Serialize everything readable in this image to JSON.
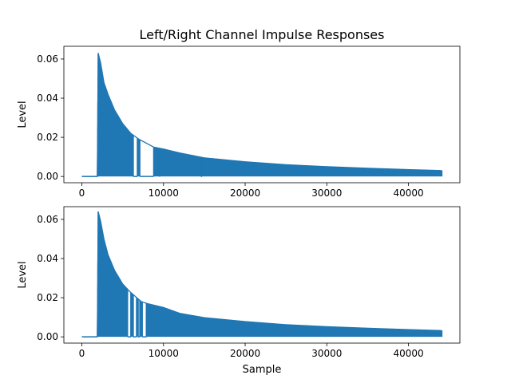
{
  "title": "Left/Right Channel Impulse Responses",
  "series_color": "#1f77b4",
  "chart_data": [
    {
      "type": "line",
      "panel": "top",
      "title": "Left/Right Channel Impulse Responses",
      "xlabel": "",
      "ylabel": "Level",
      "xlim": [
        -2200,
        46300
      ],
      "ylim": [
        -0.0032,
        0.0665
      ],
      "xticks": [
        0,
        10000,
        20000,
        30000,
        40000
      ],
      "xtick_labels": [
        "0",
        "10000",
        "20000",
        "30000",
        "40000"
      ],
      "yticks": [
        0.0,
        0.02,
        0.04,
        0.06
      ],
      "ytick_labels": [
        "0.00",
        "0.02",
        "0.04",
        "0.06"
      ],
      "grid": false,
      "series": [
        {
          "color": "#1f77b4",
          "x": [
            0,
            1900,
            2000,
            2300,
            2700,
            3200,
            4000,
            5000,
            6000,
            7000,
            8800,
            10000,
            12000,
            15000,
            20000,
            25000,
            30000,
            35000,
            40000,
            44100
          ],
          "y": [
            0.0,
            0.0,
            0.063,
            0.058,
            0.048,
            0.042,
            0.034,
            0.027,
            0.022,
            0.019,
            0.015,
            0.014,
            0.012,
            0.0095,
            0.0075,
            0.006,
            0.005,
            0.0042,
            0.0035,
            0.003
          ]
        }
      ],
      "gaps": [
        {
          "x": [
            6300,
            6800
          ]
        },
        {
          "x": [
            7100,
            8800
          ]
        },
        {
          "x": [
            9500,
            9550
          ]
        },
        {
          "x": [
            14600,
            14700
          ]
        }
      ]
    },
    {
      "type": "line",
      "panel": "bottom",
      "xlabel": "Sample",
      "ylabel": "Level",
      "xlim": [
        -2200,
        46300
      ],
      "ylim": [
        -0.0032,
        0.0665
      ],
      "xticks": [
        0,
        10000,
        20000,
        30000,
        40000
      ],
      "xtick_labels": [
        "0",
        "10000",
        "20000",
        "30000",
        "40000"
      ],
      "yticks": [
        0.0,
        0.02,
        0.04,
        0.06
      ],
      "ytick_labels": [
        "0.00",
        "0.02",
        "0.04",
        "0.06"
      ],
      "grid": false,
      "series": [
        {
          "color": "#1f77b4",
          "x": [
            0,
            1900,
            2000,
            2300,
            2700,
            3200,
            4000,
            5000,
            5900,
            7000,
            7300,
            8000,
            10000,
            12000,
            15000,
            20000,
            25000,
            30000,
            35000,
            40000,
            44100
          ],
          "y": [
            0.0,
            0.0,
            0.064,
            0.059,
            0.05,
            0.042,
            0.034,
            0.027,
            0.023,
            0.019,
            0.018,
            0.017,
            0.015,
            0.012,
            0.0098,
            0.0078,
            0.0062,
            0.0052,
            0.0044,
            0.0037,
            0.0032
          ]
        }
      ],
      "gaps": [
        {
          "x": [
            5600,
            6000
          ]
        },
        {
          "x": [
            6300,
            6700
          ]
        },
        {
          "x": [
            6900,
            7100
          ]
        },
        {
          "x": [
            7400,
            7900
          ]
        }
      ]
    }
  ]
}
